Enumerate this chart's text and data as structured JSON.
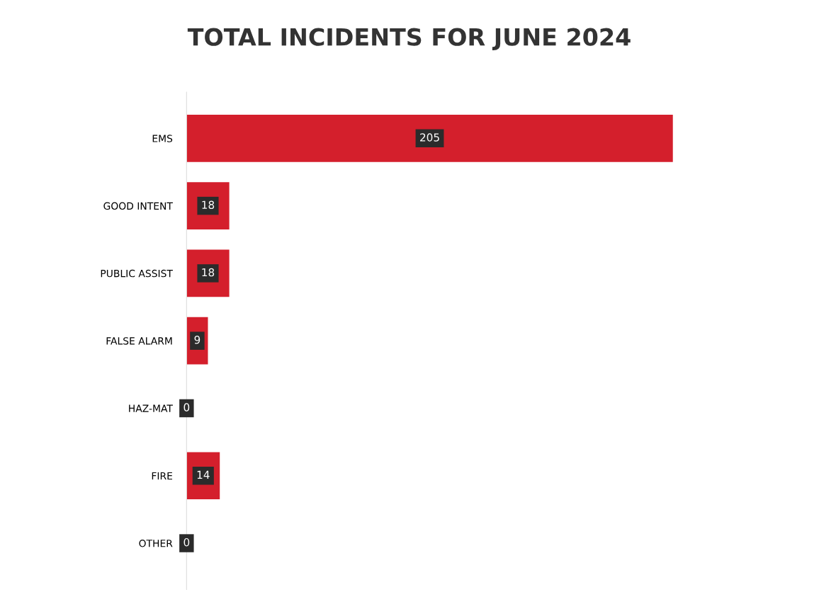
{
  "chart_data": {
    "type": "bar",
    "orientation": "horizontal",
    "title": "TOTAL INCIDENTS FOR JUNE 2024",
    "categories": [
      "EMS",
      "GOOD INTENT",
      "PUBLIC ASSIST",
      "FALSE ALARM",
      "HAZ-MAT",
      "FIRE",
      "OTHER"
    ],
    "values": [
      205,
      18,
      18,
      9,
      0,
      14,
      0
    ],
    "color": "#d41f2c",
    "data_labels": true
  }
}
